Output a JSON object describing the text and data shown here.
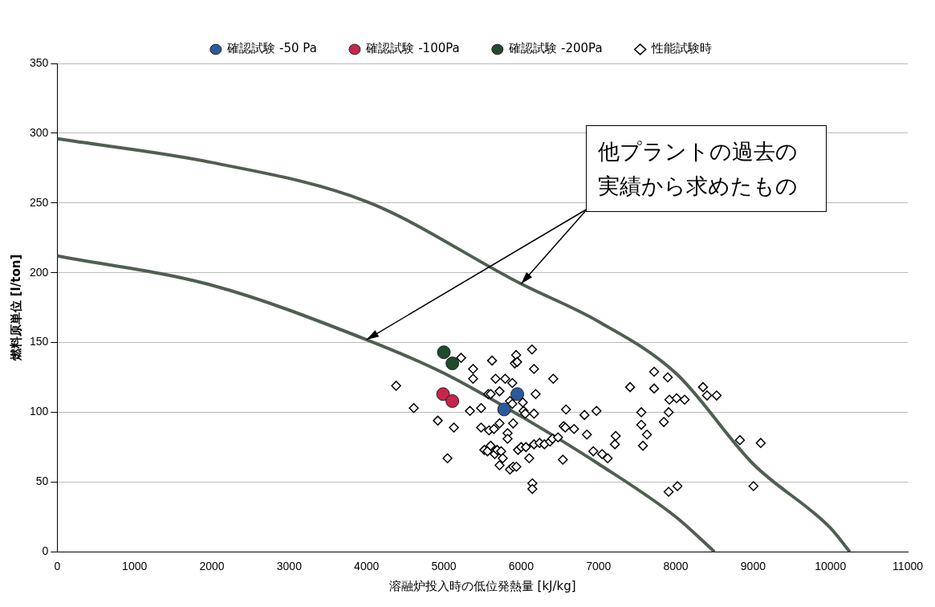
{
  "chart_data": {
    "type": "scatter",
    "xlabel": "溶融炉投入時の低位発熱量 [kJ/kg]",
    "ylabel": "燃料原単位 [l/ton]",
    "xlim": [
      0,
      11000
    ],
    "xticks": [
      0,
      1000,
      2000,
      3000,
      4000,
      5000,
      6000,
      7000,
      8000,
      9000,
      10000,
      11000
    ],
    "ylim": [
      0,
      350
    ],
    "yticks": [
      0,
      50,
      100,
      150,
      200,
      250,
      300,
      350
    ],
    "grid": "y",
    "legend": "top",
    "annotations": [
      {
        "text": "他プラントの過去の実績から求めたもの",
        "x": 6000,
        "y": 192
      }
    ],
    "series": [
      {
        "name": "確認試験 -50 Pa",
        "color": "#2b5a9c",
        "marker": "circle",
        "x": [
          5950,
          5780
        ],
        "values": [
          113,
          102
        ]
      },
      {
        "name": "確認試験 -100Pa",
        "color": "#c8244c",
        "marker": "circle",
        "x": [
          4990,
          5110
        ],
        "values": [
          113,
          108
        ]
      },
      {
        "name": "確認試験 -200Pa",
        "color": "#1f4a2c",
        "marker": "circle",
        "x": [
          5000,
          5110
        ],
        "values": [
          143,
          135
        ]
      },
      {
        "name": "性能試験時",
        "color": "#000000",
        "marker": "diamond",
        "x": [
          6140,
          5223,
          5624,
          5935,
          5917,
          5948,
          6166,
          5378,
          6415,
          5378,
          5669,
          5793,
          5886,
          4383,
          5720,
          5575,
          5606,
          6187,
          5855,
          5886,
          6021,
          4611,
          5337,
          5482,
          6031,
          6052,
          6166,
          6580,
          4922,
          5896,
          5130,
          5482,
          5585,
          5648,
          5720,
          6549,
          5824,
          5824,
          5523,
          5565,
          5606,
          5658,
          5689,
          5741,
          5762,
          5720,
          5855,
          5896,
          5938,
          5959,
          6000,
          6062,
          6104,
          6166,
          6238,
          6301,
          6373,
          6404,
          6477,
          6539,
          5047,
          6145,
          6145,
          7720,
          7896,
          7409,
          7720,
          7917,
          8010,
          8114,
          8352,
          8404,
          8528,
          6819,
          6974,
          7554,
          7907,
          6570,
          6684,
          6850,
          7223,
          7212,
          7554,
          7627,
          7575,
          7845,
          6933,
          7047,
          7119,
          8829,
          9098,
          7907,
          8021,
          9005
        ],
        "values": [
          145,
          139,
          137,
          141,
          135,
          136,
          131,
          131,
          124,
          124,
          124,
          124,
          121,
          119,
          115,
          113,
          113,
          113,
          108,
          106,
          107,
          103,
          101,
          103,
          101,
          99,
          99,
          102,
          94,
          92,
          89,
          89,
          87,
          88,
          92,
          90,
          85,
          81,
          73,
          72,
          76,
          70,
          73,
          72,
          67,
          62,
          59,
          61,
          61,
          73,
          75,
          75,
          67,
          77,
          78,
          77,
          79,
          81,
          82,
          66,
          67,
          49,
          45,
          129,
          125,
          118,
          117,
          109,
          110,
          109,
          118,
          112,
          112,
          98,
          101,
          100,
          100,
          89,
          88,
          84,
          83,
          77,
          91,
          84,
          76,
          93,
          72,
          70,
          67,
          80,
          78,
          43,
          47,
          47
        ]
      },
      {
        "type": "line",
        "color": "#4f5f50",
        "marker": "none",
        "x": [
          0,
          2000,
          4000,
          6000,
          7000,
          8000,
          9000,
          10000,
          10250
        ],
        "values": [
          296,
          279,
          251,
          192,
          165,
          128,
          63,
          17,
          0
        ]
      },
      {
        "type": "line",
        "color": "#4f5f50",
        "marker": "none",
        "x": [
          0,
          2000,
          4000,
          5000,
          6000,
          7000,
          8000,
          8500
        ],
        "values": [
          212,
          191,
          152,
          128,
          97,
          63,
          25,
          0
        ]
      }
    ]
  }
}
